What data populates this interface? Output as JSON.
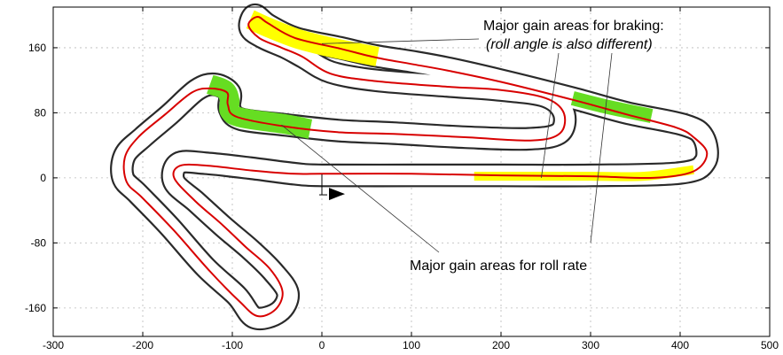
{
  "chart_data": {
    "type": "line",
    "title": "",
    "xlabel": "",
    "ylabel": "",
    "xlim": [
      -300,
      500
    ],
    "ylim": [
      -195,
      210
    ],
    "x_ticks": [
      -300,
      -200,
      -100,
      0,
      100,
      200,
      300,
      400,
      500
    ],
    "y_ticks": [
      160,
      80,
      0,
      -80,
      -160
    ],
    "grid": "dotted",
    "legend": "none",
    "colors": {
      "track_edge": "#2a2a2a",
      "racing_line": "#d80000",
      "braking_highlight": "#ffff00",
      "roll_rate_highlight": "#66dd22",
      "start_arrow": "#000000"
    },
    "track_centerline": [
      [
        0,
        3
      ],
      [
        100,
        3
      ],
      [
        200,
        3
      ],
      [
        300,
        3
      ],
      [
        400,
        6
      ],
      [
        428,
        20
      ],
      [
        426,
        50
      ],
      [
        405,
        65
      ],
      [
        340,
        80
      ],
      [
        280,
        98
      ],
      [
        200,
        120
      ],
      [
        140,
        135
      ],
      [
        100,
        143
      ],
      [
        60,
        150
      ],
      [
        20,
        160
      ],
      [
        -30,
        172
      ],
      [
        -60,
        188
      ],
      [
        -75,
        200
      ],
      [
        -80,
        184
      ],
      [
        -65,
        172
      ],
      [
        -40,
        160
      ],
      [
        -20,
        148
      ],
      [
        10,
        130
      ],
      [
        60,
        120
      ],
      [
        140,
        113
      ],
      [
        200,
        108
      ],
      [
        250,
        100
      ],
      [
        270,
        80
      ],
      [
        265,
        55
      ],
      [
        230,
        48
      ],
      [
        160,
        50
      ],
      [
        80,
        55
      ],
      [
        20,
        58
      ],
      [
        -40,
        65
      ],
      [
        -90,
        72
      ],
      [
        -103,
        85
      ],
      [
        -103,
        105
      ],
      [
        -120,
        115
      ],
      [
        -140,
        108
      ],
      [
        -170,
        78
      ],
      [
        -200,
        50
      ],
      [
        -220,
        28
      ],
      [
        -222,
        0
      ],
      [
        -205,
        -20
      ],
      [
        -170,
        -60
      ],
      [
        -130,
        -110
      ],
      [
        -95,
        -145
      ],
      [
        -75,
        -172
      ],
      [
        -48,
        -165
      ],
      [
        -38,
        -142
      ],
      [
        -55,
        -115
      ],
      [
        -80,
        -88
      ],
      [
        -110,
        -60
      ],
      [
        -140,
        -30
      ],
      [
        -165,
        -5
      ],
      [
        -160,
        18
      ],
      [
        -130,
        18
      ],
      [
        -80,
        12
      ],
      [
        -30,
        5
      ],
      [
        0,
        3
      ]
    ],
    "track_half_width": 11,
    "racing_line": [
      [
        0,
        5
      ],
      [
        100,
        5
      ],
      [
        200,
        3
      ],
      [
        300,
        2
      ],
      [
        370,
        0
      ],
      [
        415,
        8
      ],
      [
        430,
        30
      ],
      [
        415,
        50
      ],
      [
        395,
        62
      ],
      [
        340,
        78
      ],
      [
        280,
        96
      ],
      [
        200,
        118
      ],
      [
        140,
        132
      ],
      [
        100,
        140
      ],
      [
        60,
        148
      ],
      [
        20,
        159
      ],
      [
        -30,
        172
      ],
      [
        -60,
        190
      ],
      [
        -72,
        198
      ],
      [
        -82,
        188
      ],
      [
        -70,
        172
      ],
      [
        -45,
        160
      ],
      [
        -22,
        149
      ],
      [
        10,
        128
      ],
      [
        60,
        119
      ],
      [
        140,
        112
      ],
      [
        200,
        108
      ],
      [
        250,
        98
      ],
      [
        270,
        80
      ],
      [
        266,
        55
      ],
      [
        235,
        46
      ],
      [
        160,
        50
      ],
      [
        80,
        54
      ],
      [
        20,
        56
      ],
      [
        -40,
        63
      ],
      [
        -95,
        75
      ],
      [
        -105,
        90
      ],
      [
        -106,
        105
      ],
      [
        -125,
        110
      ],
      [
        -145,
        105
      ],
      [
        -175,
        78
      ],
      [
        -205,
        50
      ],
      [
        -220,
        25
      ],
      [
        -218,
        -5
      ],
      [
        -200,
        -25
      ],
      [
        -165,
        -65
      ],
      [
        -125,
        -115
      ],
      [
        -92,
        -152
      ],
      [
        -72,
        -170
      ],
      [
        -52,
        -162
      ],
      [
        -44,
        -140
      ],
      [
        -58,
        -112
      ],
      [
        -85,
        -85
      ],
      [
        -112,
        -57
      ],
      [
        -142,
        -28
      ],
      [
        -165,
        0
      ],
      [
        -158,
        15
      ],
      [
        -128,
        15
      ],
      [
        -78,
        9
      ],
      [
        -30,
        5
      ],
      [
        0,
        5
      ]
    ],
    "highlight_segments": [
      {
        "type": "braking",
        "path": [
          [
            -80,
            195
          ],
          [
            -60,
            185
          ],
          [
            -30,
            172
          ],
          [
            0,
            163
          ],
          [
            30,
            156
          ],
          [
            62,
            149
          ]
        ],
        "width": 22
      },
      {
        "type": "braking",
        "path": [
          [
            170,
            2
          ],
          [
            250,
            2
          ],
          [
            300,
            2
          ],
          [
            360,
            2
          ],
          [
            415,
            10
          ]
        ],
        "width": 10
      },
      {
        "type": "roll_rate",
        "path": [
          [
            -125,
            115
          ],
          [
            -108,
            108
          ],
          [
            -103,
            95
          ],
          [
            -103,
            82
          ],
          [
            -90,
            74
          ],
          [
            -40,
            66
          ],
          [
            -13,
            60
          ]
        ],
        "width": 22
      },
      {
        "type": "roll_rate",
        "path": [
          [
            280,
            98
          ],
          [
            320,
            87
          ],
          [
            368,
            76
          ]
        ],
        "width": 16
      }
    ],
    "start_marker": {
      "x": 0,
      "y": -10
    },
    "annotations": [
      {
        "text": "Major gain areas for braking:",
        "style": "normal",
        "points_to": [
          [
            0,
            165
          ],
          [
            245,
            0
          ],
          [
            300,
            98
          ]
        ]
      },
      {
        "text": "(roll angle is also different)",
        "style": "italic"
      },
      {
        "text": "Major gain areas for roll rate",
        "style": "normal",
        "points_to": [
          [
            -45,
            65
          ],
          [
            300,
            82
          ]
        ]
      }
    ]
  }
}
